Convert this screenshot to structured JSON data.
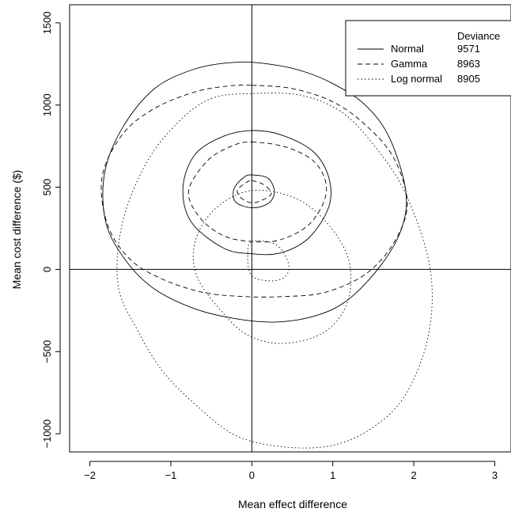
{
  "chart_data": {
    "type": "line",
    "xlabel": "Mean effect difference",
    "ylabel": "Mean cost difference ($)",
    "xlim": [
      -2.25,
      3.2
    ],
    "ylim": [
      -1110,
      1610
    ],
    "xticks": [
      -2,
      -1,
      0,
      1,
      2,
      3
    ],
    "xtick_labels": [
      "−2",
      "−1",
      "0",
      "1",
      "2",
      "3"
    ],
    "yticks": [
      -1000,
      -500,
      0,
      500,
      1000,
      1500
    ],
    "ytick_labels": [
      "−1000",
      "−500",
      "0",
      "500",
      "1000",
      "1500"
    ],
    "reference_lines": {
      "x": 0,
      "y": 0
    },
    "legend": {
      "header": "Deviance",
      "position": "top-right",
      "entries": [
        {
          "label": "Normal",
          "deviance": "9571",
          "style": "solid"
        },
        {
          "label": "Gamma",
          "deviance": "8963",
          "style": "dashed"
        },
        {
          "label": "Log normal",
          "deviance": "8905",
          "style": "dotted"
        }
      ]
    },
    "series": [
      {
        "name": "Normal",
        "style": "solid",
        "contours": [
          {
            "x": [
              -0.2,
              0.2,
              0.6,
              1.0,
              1.4,
              1.7,
              1.9,
              1.85,
              1.6,
              1.2,
              0.8,
              0.3,
              -0.2,
              -0.7,
              -1.2,
              -1.55,
              -1.8,
              -1.82,
              -1.6,
              -1.2,
              -0.7,
              -0.2
            ],
            "y": [
              1260,
              1250,
              1210,
              1130,
              1000,
              800,
              480,
              250,
              30,
              -180,
              -280,
              -320,
              -300,
              -240,
              -120,
              50,
              280,
              580,
              860,
              1100,
              1220,
              1260
            ]
          },
          {
            "x": [
              0.0,
              0.35,
              0.75,
              0.95,
              0.95,
              0.7,
              0.35,
              0.0,
              -0.35,
              -0.75,
              -0.85,
              -0.7,
              -0.35,
              0.0
            ],
            "y": [
              845,
              820,
              720,
              560,
              380,
              190,
              100,
              95,
              130,
              290,
              500,
              700,
              810,
              845
            ]
          },
          {
            "x": [
              0.0,
              0.2,
              0.28,
              0.2,
              0.0,
              -0.2,
              -0.22,
              -0.1,
              0.0
            ],
            "y": [
              575,
              555,
              470,
              400,
              375,
              410,
              490,
              560,
              575
            ]
          }
        ]
      },
      {
        "name": "Gamma",
        "style": "dashed",
        "contours": [
          {
            "x": [
              0.0,
              0.5,
              1.0,
              1.4,
              1.75,
              1.92,
              1.75,
              1.4,
              0.9,
              0.4,
              -0.1,
              -0.6,
              -1.1,
              -1.5,
              -1.78,
              -1.85,
              -1.6,
              -1.2,
              -0.7,
              -0.3,
              0.0
            ],
            "y": [
              1120,
              1100,
              1020,
              880,
              680,
              400,
              160,
              -30,
              -140,
              -165,
              -165,
              -140,
              -60,
              60,
              270,
              560,
              820,
              980,
              1080,
              1115,
              1120
            ]
          },
          {
            "x": [
              0.0,
              0.45,
              0.8,
              0.92,
              0.72,
              0.35,
              0.0,
              -0.35,
              -0.65,
              -0.78,
              -0.55,
              -0.25,
              0.0
            ],
            "y": [
              775,
              740,
              640,
              470,
              280,
              180,
              170,
              205,
              320,
              480,
              660,
              750,
              775
            ]
          },
          {
            "x": [
              0.0,
              0.15,
              0.24,
              0.12,
              0.0,
              -0.12,
              -0.18,
              -0.08,
              0.0
            ],
            "y": [
              540,
              515,
              460,
              420,
              405,
              430,
              480,
              525,
              540
            ]
          }
        ]
      },
      {
        "name": "Log normal",
        "style": "dotted",
        "contours": [
          {
            "x": [
              -0.5,
              0.0,
              0.6,
              1.1,
              1.5,
              1.9,
              2.2,
              2.18,
              1.9,
              1.5,
              1.0,
              0.4,
              -0.2,
              -0.7,
              -1.1,
              -1.4,
              -1.65,
              -1.6,
              -1.3,
              -0.9,
              -0.5
            ],
            "y": [
              1040,
              1070,
              1060,
              960,
              760,
              460,
              10,
              -400,
              -760,
              -960,
              -1070,
              -1080,
              -1010,
              -820,
              -620,
              -380,
              -100,
              280,
              650,
              900,
              1040
            ]
          },
          {
            "x": [
              0.0,
              0.55,
              0.95,
              1.2,
              1.18,
              0.9,
              0.4,
              -0.05,
              -0.4,
              -0.68,
              -0.7,
              -0.45,
              0.0
            ],
            "y": [
              480,
              430,
              270,
              50,
              -200,
              -380,
              -450,
              -400,
              -240,
              -40,
              170,
              370,
              480
            ]
          },
          {
            "x": [
              0.0,
              0.3,
              0.45,
              0.42,
              0.25,
              0.0,
              -0.05,
              0.0
            ],
            "y": [
              170,
              150,
              40,
              -40,
              -70,
              -40,
              80,
              170
            ]
          }
        ]
      }
    ]
  }
}
